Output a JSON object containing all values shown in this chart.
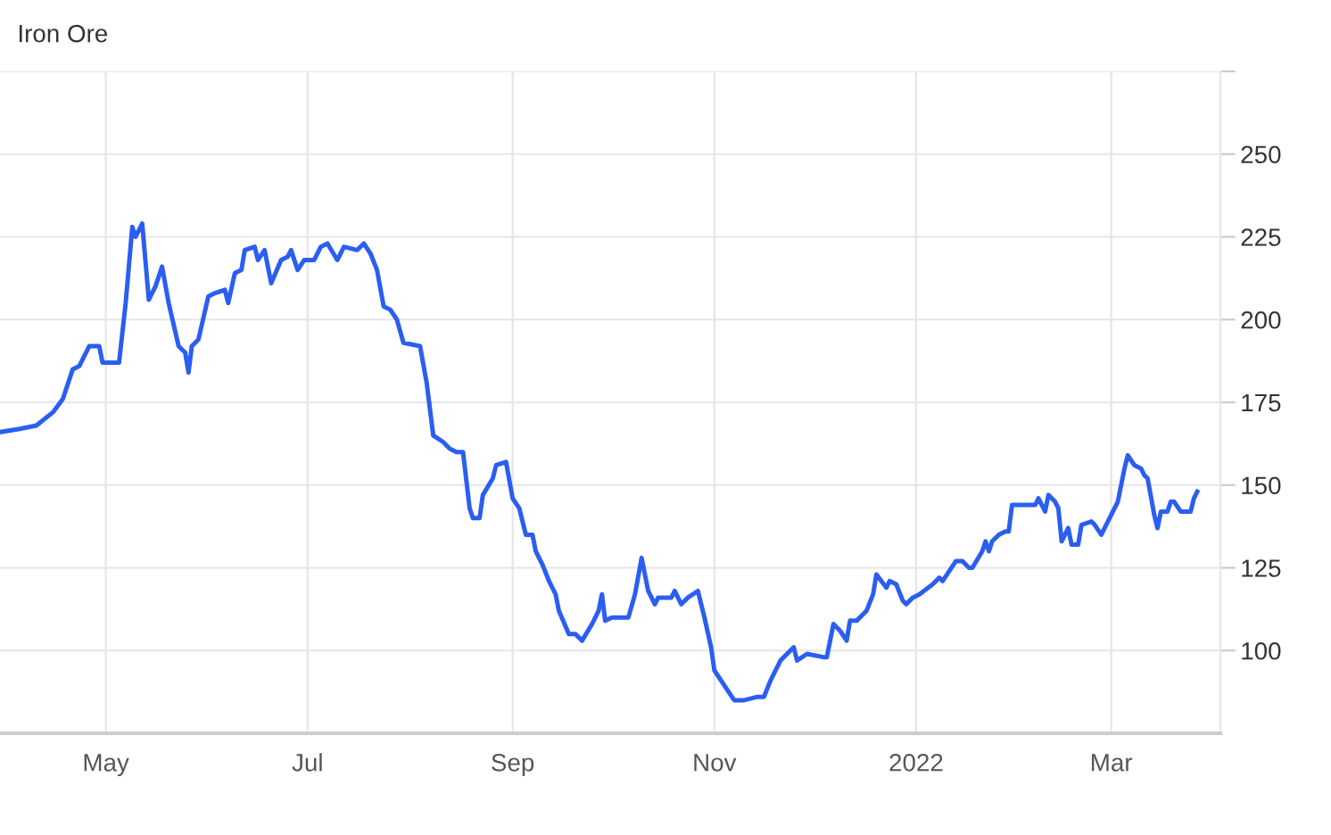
{
  "chart_data": {
    "type": "line",
    "title": "Iron Ore",
    "x": [
      "2021-03-30",
      "2021-04-05",
      "2021-04-10",
      "2021-04-15",
      "2021-04-18",
      "2021-04-21",
      "2021-04-23",
      "2021-04-26",
      "2021-04-29",
      "2021-04-30",
      "2021-05-05",
      "2021-05-07",
      "2021-05-09",
      "2021-05-10",
      "2021-05-12",
      "2021-05-14",
      "2021-05-16",
      "2021-05-18",
      "2021-05-20",
      "2021-05-23",
      "2021-05-25",
      "2021-05-26",
      "2021-05-27",
      "2021-05-29",
      "2021-06-01",
      "2021-06-03",
      "2021-06-06",
      "2021-06-07",
      "2021-06-09",
      "2021-06-11",
      "2021-06-12",
      "2021-06-15",
      "2021-06-16",
      "2021-06-18",
      "2021-06-20",
      "2021-06-23",
      "2021-06-25",
      "2021-06-26",
      "2021-06-28",
      "2021-06-30",
      "2021-07-03",
      "2021-07-05",
      "2021-07-07",
      "2021-07-10",
      "2021-07-12",
      "2021-07-16",
      "2021-07-18",
      "2021-07-20",
      "2021-07-22",
      "2021-07-24",
      "2021-07-26",
      "2021-07-28",
      "2021-07-30",
      "2021-08-04",
      "2021-08-06",
      "2021-08-08",
      "2021-08-11",
      "2021-08-13",
      "2021-08-15",
      "2021-08-17",
      "2021-08-19",
      "2021-08-20",
      "2021-08-22",
      "2021-08-23",
      "2021-08-26",
      "2021-08-27",
      "2021-08-30",
      "2021-09-01",
      "2021-09-03",
      "2021-09-05",
      "2021-09-07",
      "2021-09-08",
      "2021-09-10",
      "2021-09-12",
      "2021-09-14",
      "2021-09-15",
      "2021-09-18",
      "2021-09-20",
      "2021-09-22",
      "2021-09-25",
      "2021-09-27",
      "2021-09-28",
      "2021-09-29",
      "2021-10-01",
      "2021-10-06",
      "2021-10-08",
      "2021-10-10",
      "2021-10-12",
      "2021-10-14",
      "2021-10-15",
      "2021-10-19",
      "2021-10-20",
      "2021-10-22",
      "2021-10-24",
      "2021-10-27",
      "2021-10-29",
      "2021-10-31",
      "2021-11-01",
      "2021-11-03",
      "2021-11-05",
      "2021-11-07",
      "2021-11-10",
      "2021-11-14",
      "2021-11-16",
      "2021-11-18",
      "2021-11-21",
      "2021-11-25",
      "2021-11-26",
      "2021-11-29",
      "2021-12-04",
      "2021-12-05",
      "2021-12-07",
      "2021-12-09",
      "2021-12-11",
      "2021-12-12",
      "2021-12-14",
      "2021-12-17",
      "2021-12-19",
      "2021-12-20",
      "2021-12-23",
      "2021-12-24",
      "2021-12-26",
      "2021-12-28",
      "2021-12-29",
      "2021-12-31",
      "2022-01-02",
      "2022-01-06",
      "2022-01-08",
      "2022-01-09",
      "2022-01-13",
      "2022-01-15",
      "2022-01-17",
      "2022-01-18",
      "2022-01-21",
      "2022-01-22",
      "2022-01-23",
      "2022-01-24",
      "2022-01-26",
      "2022-01-28",
      "2022-01-29",
      "2022-01-30",
      "2022-02-02",
      "2022-02-05",
      "2022-02-06",
      "2022-02-07",
      "2022-02-09",
      "2022-02-10",
      "2022-02-12",
      "2022-02-13",
      "2022-02-14",
      "2022-02-16",
      "2022-02-17",
      "2022-02-19",
      "2022-02-20",
      "2022-02-23",
      "2022-02-24",
      "2022-02-26",
      "2022-02-27",
      "2022-03-03",
      "2022-03-05",
      "2022-03-06",
      "2022-03-08",
      "2022-03-10",
      "2022-03-11",
      "2022-03-12",
      "2022-03-14",
      "2022-03-15",
      "2022-03-16",
      "2022-03-18",
      "2022-03-19",
      "2022-03-20",
      "2022-03-22",
      "2022-03-25",
      "2022-03-26",
      "2022-03-27"
    ],
    "series": [
      {
        "color": "#2b5ef0",
        "values": [
          166,
          167,
          168,
          172,
          176,
          185,
          186,
          192,
          192,
          187,
          187,
          205,
          228,
          225,
          229,
          206,
          210,
          216,
          205,
          192,
          190,
          184,
          192,
          194,
          207,
          208,
          209,
          205,
          214,
          215,
          221,
          222,
          218,
          221,
          211,
          218,
          219,
          221,
          215,
          218,
          218,
          222,
          223,
          218,
          222,
          221,
          223,
          220,
          215,
          204,
          203,
          200,
          193,
          192,
          181,
          165,
          163,
          161,
          160,
          160,
          143,
          140,
          140,
          147,
          152,
          156,
          157,
          146,
          143,
          135,
          135,
          130,
          126,
          121,
          117,
          112,
          105,
          105,
          103,
          108,
          112,
          117,
          109,
          110,
          110,
          117,
          128,
          118,
          114,
          116,
          116,
          118,
          114,
          116,
          118,
          110,
          101,
          94,
          91,
          88,
          85,
          85,
          86,
          86,
          91,
          97,
          101,
          97,
          99,
          98,
          98,
          108,
          106,
          103,
          109,
          109,
          112,
          117,
          123,
          119,
          121,
          120,
          115,
          114,
          116,
          117,
          120,
          122,
          121,
          127,
          127,
          125,
          125,
          130,
          133,
          130,
          133,
          135,
          136,
          136,
          144,
          144,
          144,
          144,
          146,
          142,
          147,
          145,
          143,
          133,
          137,
          132,
          132,
          138,
          139,
          138,
          135,
          137,
          145,
          155,
          159,
          156,
          155,
          153,
          152,
          141,
          137,
          142,
          142,
          145,
          145,
          142,
          142,
          146,
          148
        ]
      }
    ],
    "xlim": [
      "2021-03-30",
      "2022-04-03"
    ],
    "xticks": [
      {
        "value": "2021-05-01",
        "label": "May"
      },
      {
        "value": "2021-07-01",
        "label": "Jul"
      },
      {
        "value": "2021-09-01",
        "label": "Sep"
      },
      {
        "value": "2021-11-01",
        "label": "Nov"
      },
      {
        "value": "2022-01-01",
        "label": "2022"
      },
      {
        "value": "2022-03-01",
        "label": "Mar"
      }
    ],
    "ylim": [
      75,
      275
    ],
    "yticks": [
      100,
      125,
      150,
      175,
      200,
      225,
      250,
      {
        "value": 275,
        "label": null
      }
    ],
    "grid": true,
    "marker": "none",
    "line_style": "solid",
    "legend": false
  }
}
